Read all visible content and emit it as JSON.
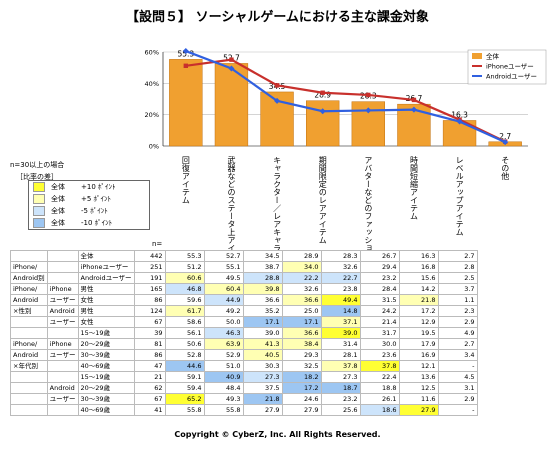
{
  "title": "【設問５】 ソーシャルゲームにおける主な課金対象",
  "chart_data": {
    "type": "bar",
    "categories": [
      "回復アイテム",
      "武器などのステータ上アイテム",
      "キャラクター／レアキャラクター",
      "期間限定のレアアイテム",
      "アバターなどのファッションアイテム",
      "時間短縮アイテム",
      "レベルアップアイテム",
      "その他"
    ],
    "series": [
      {
        "name": "全体",
        "type": "bar",
        "color": "#f0a030",
        "values": [
          55.3,
          52.7,
          34.5,
          28.9,
          28.3,
          26.7,
          16.3,
          2.7
        ]
      },
      {
        "name": "iPhoneユーザー",
        "type": "line",
        "color": "#c8302c",
        "values": [
          51.2,
          55.1,
          38.7,
          34.0,
          32.6,
          29.4,
          16.8,
          2.8
        ]
      },
      {
        "name": "Androidユーザー",
        "type": "line",
        "color": "#3060e0",
        "values": [
          60.6,
          49.5,
          28.8,
          22.2,
          22.7,
          23.2,
          15.6,
          2.5
        ]
      }
    ],
    "ylim": [
      0,
      60
    ],
    "yticks": [
      "0%",
      "20%",
      "40%",
      "60%"
    ],
    "data_labels": [
      "55.3",
      "52.7",
      "34.5",
      "28.9",
      "28.3",
      "26.7",
      "16.3",
      "2.7"
    ],
    "legend_placement": "top-right"
  },
  "note_label": "n=30以上の場合",
  "diff_title": "［比率の差］",
  "diff_legend": [
    {
      "label": "全体",
      "value": "+10 ﾎﾟｲﾝﾄ",
      "color": "#ffff33"
    },
    {
      "label": "全体",
      "value": "+5 ﾎﾟｲﾝﾄ",
      "color": "#ffffb3"
    },
    {
      "label": "全体",
      "value": "-5 ﾎﾟｲﾝﾄ",
      "color": "#cde4fb"
    },
    {
      "label": "全体",
      "value": "-10 ﾎﾟｲﾝﾄ",
      "color": "#9dc6f2"
    }
  ],
  "n_header": "n=",
  "table_rows": [
    {
      "g1": "",
      "g2": "",
      "label": "全体",
      "n": "442",
      "vals": [
        "55.3",
        "52.7",
        "34.5",
        "28.9",
        "28.3",
        "26.7",
        "16.3",
        "2.7"
      ],
      "cls": [
        "",
        "",
        "",
        "",
        "",
        "",
        "",
        ""
      ]
    },
    {
      "g1": "iPhone/",
      "g2": "",
      "label": "iPhoneユーザー",
      "n": "251",
      "vals": [
        "51.2",
        "55.1",
        "38.7",
        "34.0",
        "32.6",
        "29.4",
        "16.8",
        "2.8"
      ],
      "cls": [
        "",
        "",
        "",
        "y2",
        "",
        "",
        "",
        ""
      ]
    },
    {
      "g1": "Android別",
      "g2": "",
      "label": "Androidユーザー",
      "n": "191",
      "vals": [
        "60.6",
        "49.5",
        "28.8",
        "22.2",
        "22.7",
        "23.2",
        "15.6",
        "2.5"
      ],
      "cls": [
        "y2",
        "",
        "b1",
        "b1",
        "b1",
        "",
        "",
        ""
      ]
    },
    {
      "g1": "iPhone/",
      "g2": "iPhone",
      "label": "男性",
      "n": "165",
      "vals": [
        "46.8",
        "60.4",
        "39.8",
        "32.6",
        "23.8",
        "28.4",
        "14.2",
        "3.7"
      ],
      "cls": [
        "b1",
        "y2",
        "y2",
        "",
        "",
        "",
        "",
        ""
      ]
    },
    {
      "g1": "Android",
      "g2": "ユーザー",
      "label": "女性",
      "n": "86",
      "vals": [
        "59.6",
        "44.9",
        "36.6",
        "36.6",
        "49.4",
        "31.5",
        "21.8",
        "1.1"
      ],
      "cls": [
        "",
        "b1",
        "",
        "y2",
        "y1",
        "",
        "y2",
        ""
      ]
    },
    {
      "g1": "×性別",
      "g2": "Android",
      "label": "男性",
      "n": "124",
      "vals": [
        "61.7",
        "49.2",
        "35.2",
        "25.0",
        "14.8",
        "24.2",
        "17.2",
        "2.3"
      ],
      "cls": [
        "y2",
        "",
        "",
        "",
        "b2",
        "",
        "",
        ""
      ]
    },
    {
      "g1": "",
      "g2": "ユーザー",
      "label": "女性",
      "n": "67",
      "vals": [
        "58.6",
        "50.0",
        "17.1",
        "17.1",
        "37.1",
        "21.4",
        "12.9",
        "2.9"
      ],
      "cls": [
        "",
        "",
        "b2",
        "b2",
        "y2",
        "",
        "",
        ""
      ]
    },
    {
      "g1": "",
      "g2": "",
      "label": "15～19歳",
      "n": "39",
      "vals": [
        "56.1",
        "46.3",
        "39.0",
        "36.6",
        "39.0",
        "31.7",
        "19.5",
        "4.9"
      ],
      "cls": [
        "",
        "b1",
        "",
        "y2",
        "y1",
        "",
        "",
        ""
      ]
    },
    {
      "g1": "iPhone/",
      "g2": "iPhone",
      "label": "20～29歳",
      "n": "81",
      "vals": [
        "50.6",
        "63.9",
        "41.3",
        "38.4",
        "31.4",
        "30.0",
        "17.9",
        "2.7"
      ],
      "cls": [
        "",
        "y2",
        "y2",
        "y2",
        "",
        "",
        "",
        ""
      ]
    },
    {
      "g1": "Android",
      "g2": "ユーザー",
      "label": "30～39歳",
      "n": "86",
      "vals": [
        "52.8",
        "52.9",
        "40.5",
        "29.3",
        "28.1",
        "23.6",
        "16.9",
        "3.4"
      ],
      "cls": [
        "",
        "",
        "y2",
        "",
        "",
        "",
        "",
        ""
      ]
    },
    {
      "g1": "×年代別",
      "g2": "",
      "label": "40～69歳",
      "n": "47",
      "vals": [
        "44.6",
        "51.0",
        "30.3",
        "32.5",
        "37.8",
        "37.8",
        "12.1",
        "-"
      ],
      "cls": [
        "b2",
        "",
        "",
        "",
        "y2",
        "y1",
        "",
        ""
      ]
    },
    {
      "g1": "",
      "g2": "",
      "label": "15～19歳",
      "n": "21",
      "vals": [
        "59.1",
        "40.9",
        "27.3",
        "18.2",
        "27.3",
        "22.4",
        "13.6",
        "4.5"
      ],
      "cls": [
        "",
        "b2",
        "b1",
        "b2",
        "",
        "",
        "",
        ""
      ]
    },
    {
      "g1": "",
      "g2": "Android",
      "label": "20～29歳",
      "n": "62",
      "vals": [
        "59.4",
        "48.4",
        "37.5",
        "17.2",
        "18.7",
        "18.8",
        "12.5",
        "3.1"
      ],
      "cls": [
        "",
        "",
        "",
        "b2",
        "b2",
        "",
        "",
        ""
      ]
    },
    {
      "g1": "",
      "g2": "ユーザー",
      "label": "30～39歳",
      "n": "67",
      "vals": [
        "65.2",
        "49.3",
        "21.8",
        "24.6",
        "23.2",
        "26.1",
        "11.6",
        "2.9"
      ],
      "cls": [
        "y1",
        "",
        "b2",
        "",
        "",
        "",
        "",
        ""
      ]
    },
    {
      "g1": "",
      "g2": "",
      "label": "40～69歳",
      "n": "41",
      "vals": [
        "55.8",
        "55.8",
        "27.9",
        "27.9",
        "25.6",
        "18.6",
        "27.9",
        "-"
      ],
      "cls": [
        "",
        "",
        "",
        "",
        "",
        "b1",
        "y1",
        ""
      ]
    }
  ],
  "footer": "Copyright © CyberZ, Inc. All Rights Reserved."
}
